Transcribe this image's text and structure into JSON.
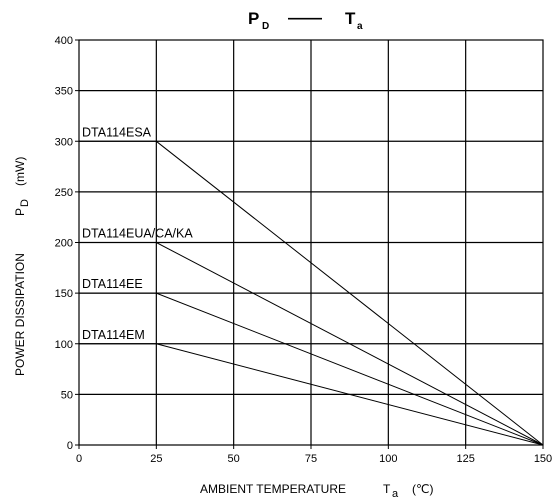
{
  "chart_data": {
    "type": "line",
    "title": {
      "left_main": "P",
      "left_sub": "D",
      "dash": "——",
      "right_main": "T",
      "right_sub": "a"
    },
    "xlabel": {
      "main": "AMBIENT TEMPERATURE",
      "symbol": "T",
      "sub": "a",
      "unit": "(℃)"
    },
    "ylabel": {
      "main": "POWER DISSIPATION",
      "symbol": "P",
      "sub": "D",
      "unit": "(mW)"
    },
    "xlim": [
      0,
      150
    ],
    "ylim": [
      0,
      400
    ],
    "xticks": [
      0,
      25,
      50,
      75,
      100,
      125,
      150
    ],
    "yticks": [
      0,
      50,
      100,
      150,
      200,
      250,
      300,
      350,
      400
    ],
    "grid": true,
    "series": [
      {
        "name": "DTA114ESA",
        "x": [
          0,
          25,
          150
        ],
        "y": [
          300,
          300,
          0
        ]
      },
      {
        "name": "DTA114EUA/CA/KA",
        "x": [
          0,
          25,
          150
        ],
        "y": [
          200,
          200,
          0
        ]
      },
      {
        "name": "DTA114EE",
        "x": [
          0,
          25,
          150
        ],
        "y": [
          150,
          150,
          0
        ]
      },
      {
        "name": "DTA114EM",
        "x": [
          0,
          25,
          150
        ],
        "y": [
          100,
          100,
          0
        ]
      }
    ]
  }
}
